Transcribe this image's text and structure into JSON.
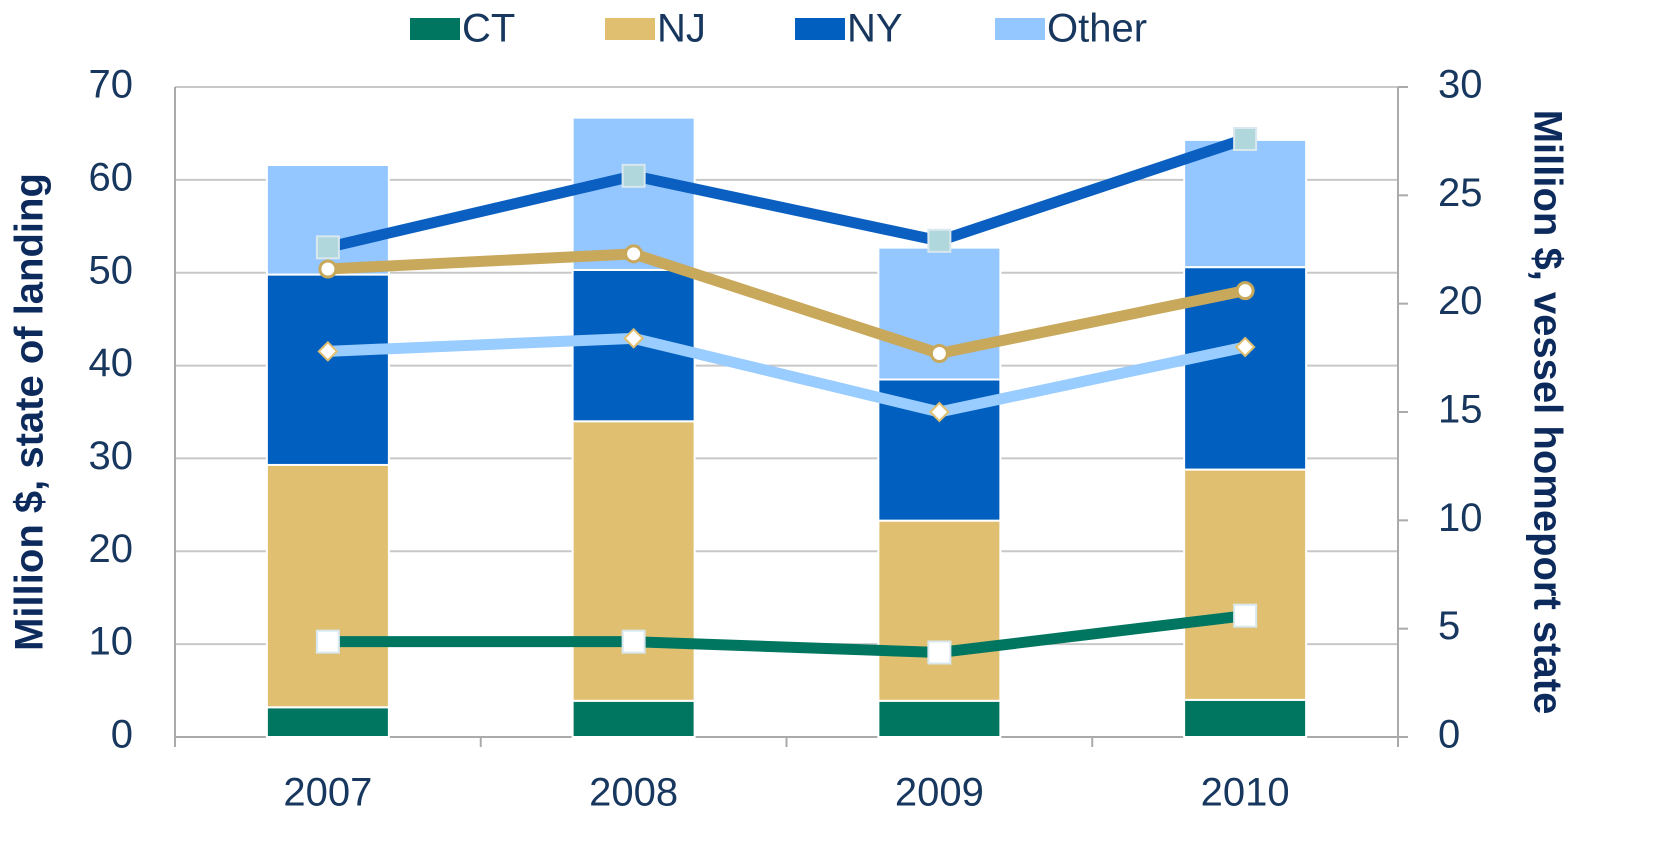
{
  "chart_data": {
    "type": "bar",
    "categories": [
      "2007",
      "2008",
      "2009",
      "2010"
    ],
    "ylabel": "Million $, state of landing",
    "y2label": "Million $, vessel homeport state",
    "ylim": [
      0,
      70
    ],
    "yticks": [
      0,
      10,
      20,
      30,
      40,
      50,
      60,
      70
    ],
    "y2lim": [
      0,
      30
    ],
    "y2ticks": [
      0,
      5,
      10,
      15,
      20,
      25,
      30
    ],
    "grid": true,
    "legend": "top",
    "series": [
      {
        "name": "CT",
        "type": "bar",
        "color": "#007560",
        "values": [
          3.2,
          3.9,
          3.9,
          4.0
        ]
      },
      {
        "name": "NJ",
        "type": "bar",
        "color": "#e0c070",
        "values": [
          26.1,
          30.1,
          19.4,
          24.8
        ]
      },
      {
        "name": "NY",
        "type": "bar",
        "color": "#005fbf",
        "values": [
          20.5,
          16.3,
          15.2,
          21.8
        ]
      },
      {
        "name": "Other",
        "type": "bar",
        "color": "#94c6ff",
        "values": [
          11.8,
          16.4,
          14.2,
          13.7
        ]
      },
      {
        "name": "CT",
        "type": "line",
        "axis": "y2",
        "color": "#007560",
        "marker": "square",
        "values": [
          4.4,
          4.4,
          3.9,
          5.6
        ]
      },
      {
        "name": "NJ",
        "type": "line",
        "axis": "y2",
        "color": "#c8a85a",
        "marker": "circle",
        "values": [
          21.6,
          22.3,
          17.7,
          20.6
        ]
      },
      {
        "name": "NY",
        "type": "line",
        "axis": "y2",
        "color": "#0a5fc0",
        "marker": "square",
        "values": [
          22.6,
          25.9,
          22.9,
          27.6
        ]
      },
      {
        "name": "Other",
        "type": "line",
        "axis": "y2",
        "color": "#99ccff",
        "marker": "diamond",
        "values": [
          17.8,
          18.4,
          15.0,
          18.0
        ]
      }
    ]
  }
}
